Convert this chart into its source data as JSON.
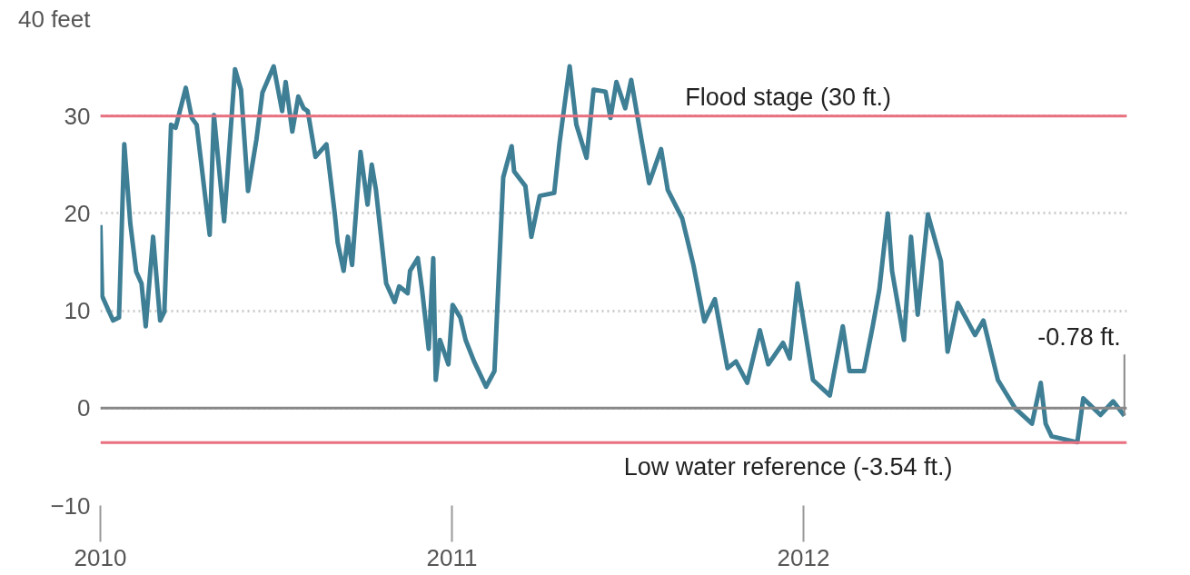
{
  "chart_data": {
    "type": "line",
    "x": [
      2010.0,
      2010.005,
      2010.036,
      2010.053,
      2010.068,
      2010.085,
      2010.102,
      2010.117,
      2010.129,
      2010.15,
      2010.17,
      2010.182,
      2010.201,
      2010.214,
      2010.243,
      2010.26,
      2010.274,
      2010.311,
      2010.323,
      2010.352,
      2010.383,
      2010.4,
      2010.42,
      2010.444,
      2010.461,
      2010.493,
      2010.517,
      2010.527,
      2010.546,
      2010.563,
      2010.578,
      2010.59,
      2010.612,
      2010.643,
      2010.667,
      2010.675,
      2010.692,
      2010.704,
      2010.716,
      2010.74,
      2010.76,
      2010.772,
      2010.784,
      2010.813,
      2010.837,
      2010.85,
      2010.874,
      2010.881,
      2010.903,
      2010.915,
      2010.934,
      2010.947,
      2010.954,
      2010.966,
      2010.99,
      2011.002,
      2011.024,
      2011.039,
      2011.063,
      2011.097,
      2011.121,
      2011.146,
      2011.17,
      2011.177,
      2011.209,
      2011.226,
      2011.25,
      2011.291,
      2011.306,
      2011.335,
      2011.354,
      2011.383,
      2011.403,
      2011.437,
      2011.451,
      2011.468,
      2011.493,
      2011.51,
      2011.541,
      2011.561,
      2011.595,
      2011.614,
      2011.655,
      2011.687,
      2011.718,
      2011.748,
      2011.784,
      2011.808,
      2011.84,
      2011.876,
      2011.9,
      2011.942,
      2011.961,
      2011.983,
      2012.027,
      2012.075,
      2012.112,
      2012.131,
      2012.172,
      2012.197,
      2012.216,
      2012.24,
      2012.252,
      2012.286,
      2012.306,
      2012.325,
      2012.354,
      2012.391,
      2012.41,
      2012.439,
      2012.488,
      2012.512,
      2012.553,
      2012.602,
      2012.65,
      2012.675,
      2012.689,
      2012.706,
      2012.779,
      2012.796,
      2012.845,
      2012.881,
      2012.913
    ],
    "series": [
      {
        "color": "#3f7f96",
        "values": [
          18.8,
          11.5,
          9,
          9.3,
          27.1,
          19,
          14,
          12.8,
          8.4,
          17.6,
          9,
          9.9,
          29.1,
          28.8,
          32.9,
          29.8,
          29.1,
          17.8,
          30.1,
          19.2,
          34.8,
          32.7,
          22.3,
          27.6,
          32.4,
          35.1,
          30.5,
          33.5,
          28.4,
          32,
          30.8,
          30.5,
          25.8,
          27.1,
          19.9,
          17,
          14.1,
          17.6,
          14.7,
          26.3,
          20.9,
          25,
          22.4,
          12.8,
          10.9,
          12.5,
          11.8,
          14.1,
          15.4,
          12.2,
          6.1,
          15.4,
          2.9,
          7,
          4.5,
          10.6,
          9.3,
          7,
          4.8,
          2.2,
          3.8,
          23.7,
          26.9,
          24.3,
          22.8,
          17.6,
          21.8,
          22.1,
          27.2,
          35.1,
          29.1,
          25.7,
          32.7,
          32.5,
          29.8,
          33.5,
          30.8,
          33.7,
          27.2,
          23.1,
          26.6,
          22.4,
          19.5,
          14.7,
          8.9,
          11.2,
          4.1,
          4.8,
          2.6,
          8,
          4.5,
          6.7,
          5.1,
          12.8,
          2.9,
          1.3,
          8.4,
          3.8,
          3.8,
          8.4,
          12.2,
          20,
          14.1,
          7,
          17.6,
          9.6,
          19.9,
          15.1,
          5.8,
          10.8,
          7.5,
          9,
          2.9,
          0,
          -1.6,
          2.6,
          -1.6,
          -2.9,
          -3.5,
          1,
          -0.7,
          0.7,
          -0.78
        ]
      }
    ],
    "xlim": [
      2010,
      2012.92
    ],
    "ylim": [
      -10,
      40
    ],
    "xticks": [
      2010,
      2011,
      2012
    ],
    "yticks": [
      {
        "value": 40,
        "label": "40 feet"
      },
      30,
      20,
      10,
      0,
      -10
    ],
    "grid": "y",
    "marker": "none",
    "line_style": "solid",
    "ref_lines": [
      {
        "axis": "y",
        "value": 30,
        "label": "Flood stage (30 ft.)",
        "color": "#e8707f"
      },
      {
        "axis": "y",
        "value": 0,
        "label": null,
        "color": "#888888"
      },
      {
        "axis": "y",
        "value": -3.54,
        "label": "Low water reference (-3.54 ft.)",
        "color": "#e8707f"
      }
    ],
    "annotations": [
      {
        "text": "-0.78 ft.",
        "x": 2012.913,
        "y": -0.78
      }
    ]
  }
}
